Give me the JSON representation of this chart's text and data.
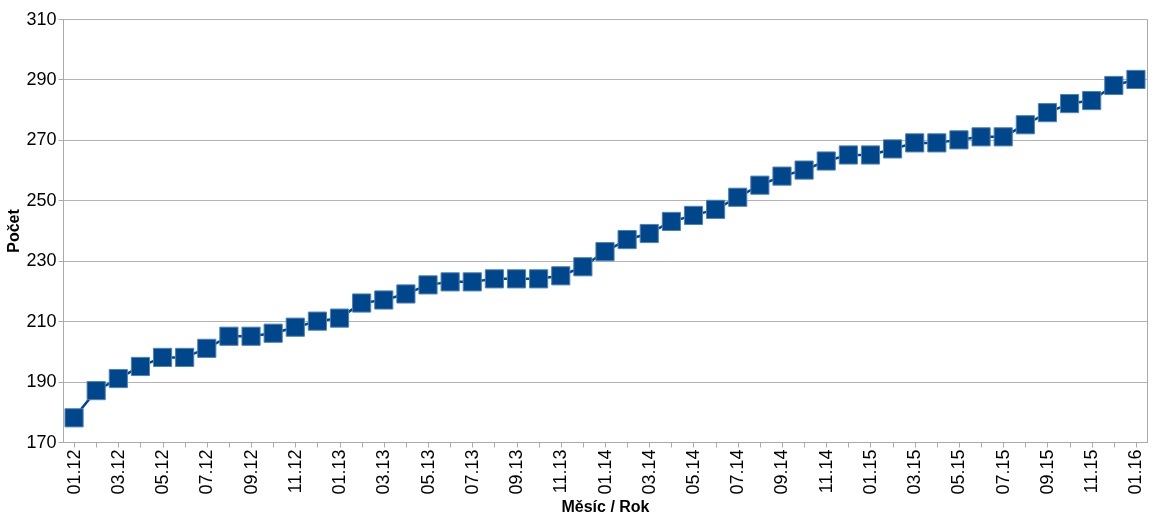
{
  "chart_data": {
    "type": "line",
    "xlabel": "Měsíc / Rok",
    "ylabel": "Počet",
    "categories": [
      "01.12",
      null,
      "03.12",
      null,
      "05.12",
      null,
      "07.12",
      null,
      "09.12",
      null,
      "11.12",
      null,
      "01.13",
      null,
      "03.13",
      null,
      "05.13",
      null,
      "07.13",
      null,
      "09.13",
      null,
      "11.13",
      null,
      "01.14",
      null,
      "03.14",
      null,
      "05.14",
      null,
      "07.14",
      null,
      "09.14",
      null,
      "11.14",
      null,
      "01.15",
      null,
      "03.15",
      null,
      "05.15",
      null,
      "07.15",
      null,
      "09.15",
      null,
      "11.15",
      null,
      "01.16"
    ],
    "series": [
      {
        "color": "#00468b",
        "values": [
          178,
          187,
          191,
          195,
          198,
          198,
          201,
          205,
          205,
          206,
          208,
          210,
          211,
          216,
          217,
          219,
          222,
          223,
          223,
          224,
          224,
          224,
          225,
          228,
          233,
          237,
          239,
          243,
          245,
          247,
          251,
          255,
          258,
          260,
          263,
          265,
          265,
          267,
          269,
          269,
          270,
          271,
          271,
          275,
          279,
          282,
          283,
          288,
          290
        ]
      }
    ],
    "ylim": [
      170,
      310
    ],
    "yticks": [
      170,
      190,
      210,
      230,
      250,
      270,
      290,
      310
    ],
    "grid": "y",
    "legend": false,
    "marker": "square",
    "line_style": "solid"
  }
}
